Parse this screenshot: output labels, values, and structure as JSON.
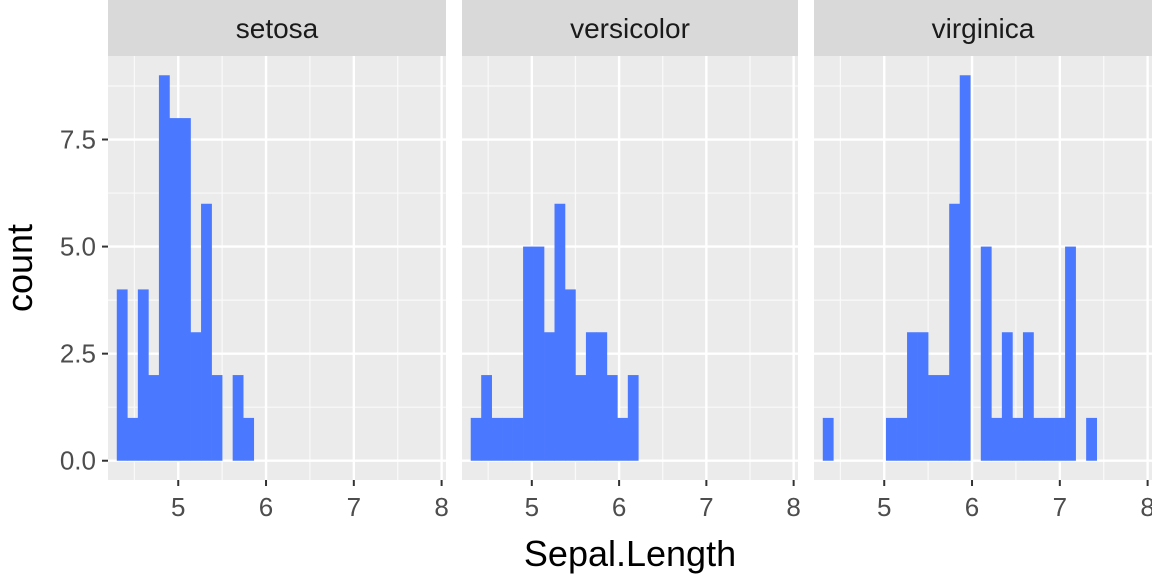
{
  "chart_data": {
    "type": "bar",
    "subtype": "faceted-histogram",
    "xlabel": "Sepal.Length",
    "ylabel": "count",
    "x_range": [
      4.2,
      8.05
    ],
    "y_range": [
      -0.45,
      9.45
    ],
    "x_ticks": [
      5,
      6,
      7,
      8
    ],
    "x_tick_labels": [
      "5",
      "6",
      "7",
      "8"
    ],
    "y_ticks": [
      0,
      2.5,
      5,
      7.5
    ],
    "y_tick_labels": [
      "0.0",
      "2.5",
      "5.0",
      "7.5"
    ],
    "bin_width": 0.12,
    "bin_start": 4.3,
    "bar_color": "#4a78ff",
    "panel_background": "#ebebeb",
    "strip_background": "#d9d9d9",
    "grid": true,
    "facets": [
      {
        "label": "setosa",
        "counts": [
          4,
          1,
          4,
          2,
          9,
          8,
          8,
          3,
          6,
          2,
          0,
          2,
          1
        ]
      },
      {
        "label": "versicolor",
        "counts": [
          1,
          2,
          1,
          1,
          1,
          5,
          5,
          3,
          6,
          4,
          2,
          3,
          3,
          2,
          1,
          2
        ]
      },
      {
        "label": "virginica",
        "counts": [
          1,
          0,
          0,
          0,
          0,
          0,
          1,
          1,
          3,
          3,
          2,
          2,
          6,
          9,
          0,
          5,
          1,
          3,
          1,
          3,
          1,
          1,
          1,
          5,
          0,
          1
        ]
      }
    ]
  }
}
